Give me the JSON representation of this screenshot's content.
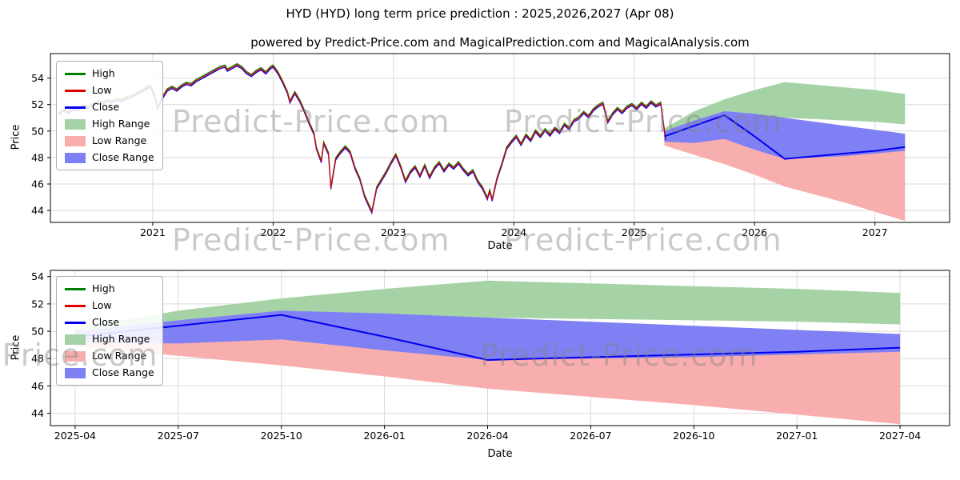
{
  "page": {
    "title": "HYD (HYD) long term price prediction : 2025,2026,2027 (Apr 08)",
    "subtitle": "powered by Predict-Price.com and MagicalPrediction.com and MagicalAnalysis.com",
    "watermark_text": "Predict-Price.com"
  },
  "colors": {
    "high_line": "#008000",
    "low_line": "#e00000",
    "close_line": "#0000ee",
    "high_range_fill": "#a6d3a6",
    "low_range_fill": "#f9aeae",
    "close_range_fill": "#8080f5",
    "grid": "#d9d9d9",
    "axis": "#000000"
  },
  "legend": {
    "items": [
      {
        "label": "High",
        "swatch": "line",
        "color": "#008000"
      },
      {
        "label": "Low",
        "swatch": "line",
        "color": "#e00000"
      },
      {
        "label": "Close",
        "swatch": "line",
        "color": "#0000ee"
      },
      {
        "label": "High Range",
        "swatch": "patch",
        "color": "#a6d3a6"
      },
      {
        "label": "Low Range",
        "swatch": "patch",
        "color": "#f9aeae"
      },
      {
        "label": "Close Range",
        "swatch": "patch",
        "color": "#8080f5"
      }
    ]
  },
  "chart_data": {
    "type": "line",
    "charts": [
      {
        "id": "history-and-forecast",
        "xlabel": "Date",
        "ylabel": "Price",
        "show_historical": true,
        "grid": true,
        "legend_position": "upper left",
        "xlim": [
          2020.15,
          2027.62
        ],
        "ylim": [
          43.1,
          55.85
        ],
        "y_ticks": [
          44,
          46,
          48,
          50,
          52,
          54
        ],
        "x_ticks": [
          {
            "value": 2021,
            "label": "2021"
          },
          {
            "value": 2022,
            "label": "2022"
          },
          {
            "value": 2023,
            "label": "2023"
          },
          {
            "value": 2024,
            "label": "2024"
          },
          {
            "value": 2025,
            "label": "2025"
          },
          {
            "value": 2026,
            "label": "2026"
          },
          {
            "value": 2027,
            "label": "2027"
          }
        ]
      },
      {
        "id": "forecast-detail",
        "xlabel": "Date",
        "ylabel": "Price",
        "show_historical": false,
        "grid": true,
        "legend_position": "upper left",
        "xlim": [
          2025.19,
          2027.37
        ],
        "ylim": [
          43.1,
          54.45
        ],
        "y_ticks": [
          44,
          46,
          48,
          50,
          52,
          54
        ],
        "x_ticks": [
          {
            "value": 2025.25,
            "label": "2025-04"
          },
          {
            "value": 2025.5,
            "label": "2025-07"
          },
          {
            "value": 2025.75,
            "label": "2025-10"
          },
          {
            "value": 2026.0,
            "label": "2026-01"
          },
          {
            "value": 2026.25,
            "label": "2026-04"
          },
          {
            "value": 2026.5,
            "label": "2026-07"
          },
          {
            "value": 2026.75,
            "label": "2026-10"
          },
          {
            "value": 2027.0,
            "label": "2027-01"
          },
          {
            "value": 2027.25,
            "label": "2027-04"
          }
        ]
      }
    ],
    "historical": {
      "description": "High/Low/Close daily prices, visually overlapping",
      "points": [
        [
          2020.22,
          51.3
        ],
        [
          2020.26,
          51.6
        ],
        [
          2020.3,
          51.4
        ],
        [
          2020.34,
          51.7
        ],
        [
          2020.38,
          51.6
        ],
        [
          2020.42,
          51.9
        ],
        [
          2020.46,
          51.8
        ],
        [
          2020.5,
          52.0
        ],
        [
          2020.54,
          52.2
        ],
        [
          2020.58,
          52.1
        ],
        [
          2020.62,
          52.3
        ],
        [
          2020.66,
          52.2
        ],
        [
          2020.7,
          52.4
        ],
        [
          2020.74,
          52.3
        ],
        [
          2020.78,
          52.5
        ],
        [
          2020.82,
          52.6
        ],
        [
          2020.86,
          52.8
        ],
        [
          2020.9,
          53.0
        ],
        [
          2020.94,
          53.2
        ],
        [
          2020.98,
          53.4
        ],
        [
          2021.02,
          52.6
        ],
        [
          2021.04,
          51.7
        ],
        [
          2021.08,
          52.5
        ],
        [
          2021.12,
          53.1
        ],
        [
          2021.16,
          53.3
        ],
        [
          2021.2,
          53.1
        ],
        [
          2021.24,
          53.4
        ],
        [
          2021.28,
          53.6
        ],
        [
          2021.32,
          53.5
        ],
        [
          2021.36,
          53.8
        ],
        [
          2021.4,
          54.0
        ],
        [
          2021.44,
          54.2
        ],
        [
          2021.48,
          54.4
        ],
        [
          2021.52,
          54.6
        ],
        [
          2021.56,
          54.8
        ],
        [
          2021.6,
          54.9
        ],
        [
          2021.62,
          54.6
        ],
        [
          2021.66,
          54.8
        ],
        [
          2021.7,
          55.0
        ],
        [
          2021.74,
          54.8
        ],
        [
          2021.78,
          54.4
        ],
        [
          2021.82,
          54.2
        ],
        [
          2021.86,
          54.5
        ],
        [
          2021.9,
          54.7
        ],
        [
          2021.94,
          54.4
        ],
        [
          2021.98,
          54.8
        ],
        [
          2022.0,
          54.9
        ],
        [
          2022.04,
          54.4
        ],
        [
          2022.08,
          53.7
        ],
        [
          2022.12,
          52.9
        ],
        [
          2022.14,
          52.2
        ],
        [
          2022.18,
          52.9
        ],
        [
          2022.22,
          52.3
        ],
        [
          2022.26,
          51.5
        ],
        [
          2022.3,
          50.6
        ],
        [
          2022.34,
          49.8
        ],
        [
          2022.36,
          48.7
        ],
        [
          2022.4,
          47.7
        ],
        [
          2022.42,
          49.1
        ],
        [
          2022.46,
          48.3
        ],
        [
          2022.48,
          45.7
        ],
        [
          2022.52,
          47.9
        ],
        [
          2022.56,
          48.4
        ],
        [
          2022.6,
          48.8
        ],
        [
          2022.64,
          48.4
        ],
        [
          2022.68,
          47.2
        ],
        [
          2022.72,
          46.4
        ],
        [
          2022.76,
          45.1
        ],
        [
          2022.8,
          44.3
        ],
        [
          2022.82,
          43.9
        ],
        [
          2022.86,
          45.7
        ],
        [
          2022.9,
          46.3
        ],
        [
          2022.94,
          46.9
        ],
        [
          2022.98,
          47.6
        ],
        [
          2023.02,
          48.2
        ],
        [
          2023.06,
          47.3
        ],
        [
          2023.1,
          46.2
        ],
        [
          2023.14,
          46.9
        ],
        [
          2023.18,
          47.3
        ],
        [
          2023.22,
          46.6
        ],
        [
          2023.26,
          47.4
        ],
        [
          2023.3,
          46.5
        ],
        [
          2023.34,
          47.2
        ],
        [
          2023.38,
          47.6
        ],
        [
          2023.42,
          47.0
        ],
        [
          2023.46,
          47.5
        ],
        [
          2023.5,
          47.2
        ],
        [
          2023.54,
          47.6
        ],
        [
          2023.58,
          47.1
        ],
        [
          2023.62,
          46.7
        ],
        [
          2023.66,
          47.0
        ],
        [
          2023.7,
          46.2
        ],
        [
          2023.74,
          45.7
        ],
        [
          2023.78,
          44.9
        ],
        [
          2023.8,
          45.5
        ],
        [
          2023.82,
          44.8
        ],
        [
          2023.86,
          46.4
        ],
        [
          2023.9,
          47.5
        ],
        [
          2023.94,
          48.7
        ],
        [
          2023.98,
          49.2
        ],
        [
          2024.02,
          49.6
        ],
        [
          2024.06,
          49.0
        ],
        [
          2024.1,
          49.7
        ],
        [
          2024.14,
          49.3
        ],
        [
          2024.18,
          50.0
        ],
        [
          2024.22,
          49.6
        ],
        [
          2024.26,
          50.1
        ],
        [
          2024.3,
          49.7
        ],
        [
          2024.34,
          50.2
        ],
        [
          2024.38,
          49.9
        ],
        [
          2024.42,
          50.5
        ],
        [
          2024.46,
          50.2
        ],
        [
          2024.5,
          50.8
        ],
        [
          2024.54,
          51.0
        ],
        [
          2024.58,
          51.4
        ],
        [
          2024.62,
          51.1
        ],
        [
          2024.66,
          51.6
        ],
        [
          2024.7,
          51.9
        ],
        [
          2024.74,
          52.1
        ],
        [
          2024.78,
          50.7
        ],
        [
          2024.82,
          51.3
        ],
        [
          2024.86,
          51.7
        ],
        [
          2024.9,
          51.4
        ],
        [
          2024.94,
          51.8
        ],
        [
          2024.98,
          52.0
        ],
        [
          2025.02,
          51.7
        ],
        [
          2025.06,
          52.1
        ],
        [
          2025.1,
          51.8
        ],
        [
          2025.14,
          52.2
        ],
        [
          2025.18,
          51.9
        ],
        [
          2025.22,
          52.1
        ],
        [
          2025.26,
          49.4
        ]
      ]
    },
    "prediction": {
      "x": [
        2025.25,
        2025.5,
        2025.75,
        2026.0,
        2026.25,
        2026.5,
        2026.75,
        2027.0,
        2027.25
      ],
      "x_labels": [
        "2025-04",
        "2025-07",
        "2025-10",
        "2026-01",
        "2026-04",
        "2026-07",
        "2026-10",
        "2027-01",
        "2027-04"
      ],
      "close": [
        49.6,
        50.4,
        51.2,
        49.6,
        47.9,
        48.1,
        48.3,
        48.5,
        48.8
      ],
      "high_range": {
        "upper": [
          50.2,
          51.5,
          52.4,
          53.1,
          53.7,
          53.5,
          53.3,
          53.1,
          52.8
        ],
        "lower": [
          49.8,
          50.3,
          50.9,
          51.0,
          51.0,
          50.9,
          50.8,
          50.7,
          50.5
        ]
      },
      "close_range": {
        "upper": [
          50.0,
          50.8,
          51.5,
          51.3,
          51.0,
          50.7,
          50.4,
          50.1,
          49.8
        ],
        "lower": [
          49.2,
          49.1,
          49.4,
          48.6,
          47.9,
          48.0,
          48.1,
          48.3,
          48.5
        ]
      },
      "low_range": {
        "upper": [
          49.5,
          49.4,
          49.7,
          48.8,
          48.0,
          48.1,
          48.3,
          48.4,
          48.6
        ],
        "lower": [
          48.9,
          48.2,
          47.5,
          46.7,
          45.8,
          45.2,
          44.6,
          43.9,
          43.2
        ]
      }
    }
  }
}
